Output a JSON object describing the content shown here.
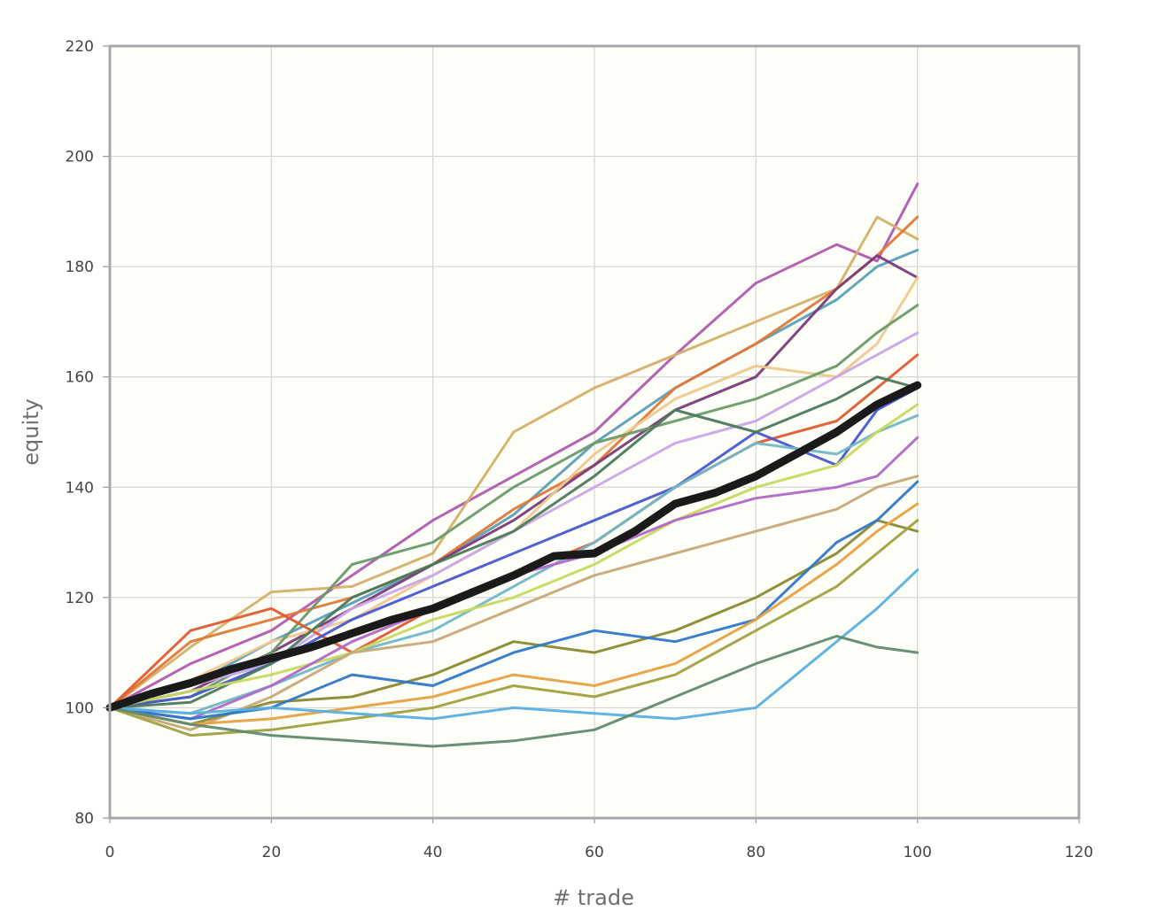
{
  "chart_data": {
    "type": "line",
    "title": "",
    "xlabel": "# trade",
    "ylabel": "equity",
    "xlim": [
      0,
      120
    ],
    "ylim": [
      80,
      220
    ],
    "x_ticks": [
      "0",
      "20",
      "40",
      "60",
      "80",
      "100",
      "120"
    ],
    "y_ticks": [
      "80",
      "100",
      "120",
      "140",
      "160",
      "180",
      "200",
      "220"
    ],
    "grid": true,
    "legend": "none",
    "background_color": "#fefef8",
    "grid_color": "#d6d6d6",
    "series": [
      {
        "color": "#b05ab0",
        "x": [
          0,
          10,
          20,
          30,
          40,
          50,
          60,
          70,
          80,
          90,
          95,
          100
        ],
        "values": [
          100,
          108,
          114,
          124,
          134,
          142,
          150,
          164,
          177,
          184,
          181,
          195
        ]
      },
      {
        "color": "#d4b06a",
        "x": [
          0,
          10,
          20,
          30,
          40,
          50,
          60,
          70,
          80,
          90,
          95,
          100
        ],
        "values": [
          100,
          111,
          121,
          122,
          128,
          150,
          158,
          164,
          170,
          176,
          189,
          185
        ]
      },
      {
        "color": "#5a9fb8",
        "x": [
          0,
          10,
          20,
          30,
          40,
          50,
          60,
          70,
          80,
          90,
          95,
          100
        ],
        "values": [
          100,
          104,
          112,
          119,
          126,
          135,
          148,
          158,
          166,
          174,
          180,
          183
        ]
      },
      {
        "color": "#e07838",
        "x": [
          0,
          10,
          20,
          30,
          40,
          50,
          60,
          70,
          80,
          90,
          95,
          100
        ],
        "values": [
          100,
          112,
          116,
          120,
          126,
          136,
          144,
          158,
          166,
          176,
          182,
          189
        ]
      },
      {
        "color": "#7a3c7a",
        "x": [
          0,
          10,
          20,
          30,
          40,
          50,
          60,
          70,
          80,
          90,
          95,
          100
        ],
        "values": [
          100,
          103,
          110,
          118,
          126,
          134,
          144,
          154,
          160,
          176,
          182,
          178
        ]
      },
      {
        "color": "#f0c890",
        "x": [
          0,
          10,
          20,
          30,
          40,
          50,
          60,
          70,
          80,
          90,
          95,
          100
        ],
        "values": [
          100,
          105,
          112,
          116,
          124,
          132,
          146,
          156,
          162,
          160,
          166,
          178
        ]
      },
      {
        "color": "#6a9a6a",
        "x": [
          0,
          10,
          20,
          30,
          40,
          50,
          60,
          70,
          80,
          90,
          95,
          100
        ],
        "values": [
          100,
          102,
          110,
          126,
          130,
          140,
          148,
          152,
          156,
          162,
          168,
          173
        ]
      },
      {
        "color": "#c8a8e8",
        "x": [
          0,
          10,
          20,
          30,
          40,
          50,
          60,
          70,
          80,
          90,
          95,
          100
        ],
        "values": [
          100,
          104,
          108,
          118,
          124,
          132,
          140,
          148,
          152,
          160,
          164,
          168
        ]
      },
      {
        "color": "#e05a30",
        "x": [
          0,
          10,
          20,
          30,
          40,
          50,
          60,
          70,
          80,
          90,
          95,
          100
        ],
        "values": [
          100,
          114,
          118,
          110,
          118,
          124,
          130,
          140,
          148,
          152,
          158,
          164
        ]
      },
      {
        "color": "#4858d0",
        "x": [
          0,
          10,
          20,
          30,
          40,
          50,
          60,
          70,
          80,
          90,
          95,
          100
        ],
        "values": [
          100,
          102,
          108,
          116,
          122,
          128,
          134,
          140,
          150,
          144,
          154,
          158
        ]
      },
      {
        "color": "#4a7a5a",
        "x": [
          0,
          10,
          20,
          30,
          40,
          50,
          60,
          70,
          80,
          90,
          95,
          100
        ],
        "values": [
          100,
          101,
          108,
          120,
          126,
          132,
          142,
          154,
          150,
          156,
          160,
          158
        ]
      },
      {
        "color": "#70b8c8",
        "x": [
          0,
          10,
          20,
          30,
          40,
          50,
          60,
          70,
          80,
          90,
          95,
          100
        ],
        "values": [
          100,
          99,
          104,
          110,
          114,
          122,
          130,
          140,
          148,
          146,
          150,
          153
        ]
      },
      {
        "color": "#c8d860",
        "x": [
          0,
          10,
          20,
          30,
          40,
          50,
          60,
          70,
          80,
          90,
          95,
          100
        ],
        "values": [
          100,
          103,
          106,
          110,
          116,
          120,
          126,
          134,
          140,
          144,
          150,
          155
        ]
      },
      {
        "color": "#b068c8",
        "x": [
          0,
          10,
          20,
          30,
          40,
          50,
          60,
          70,
          80,
          90,
          95,
          100
        ],
        "values": [
          100,
          98,
          104,
          112,
          118,
          124,
          128,
          134,
          138,
          140,
          142,
          149
        ]
      },
      {
        "color": "#c8a878",
        "x": [
          0,
          10,
          20,
          30,
          40,
          50,
          60,
          70,
          80,
          90,
          95,
          100
        ],
        "values": [
          100,
          96,
          102,
          110,
          112,
          118,
          124,
          128,
          132,
          136,
          140,
          142
        ]
      },
      {
        "color": "#8a8a30",
        "x": [
          0,
          10,
          20,
          30,
          40,
          50,
          60,
          70,
          80,
          90,
          95,
          100
        ],
        "values": [
          100,
          97,
          101,
          102,
          106,
          112,
          110,
          114,
          120,
          128,
          134,
          132
        ]
      },
      {
        "color": "#2e78c8",
        "x": [
          0,
          10,
          20,
          30,
          40,
          50,
          60,
          70,
          80,
          90,
          95,
          100
        ],
        "values": [
          100,
          98,
          100,
          106,
          104,
          110,
          114,
          112,
          116,
          130,
          134,
          141
        ]
      },
      {
        "color": "#e8a040",
        "x": [
          0,
          10,
          20,
          30,
          40,
          50,
          60,
          70,
          80,
          90,
          95,
          100
        ],
        "values": [
          100,
          97,
          98,
          100,
          102,
          106,
          104,
          108,
          116,
          126,
          132,
          137
        ]
      },
      {
        "color": "#a0a040",
        "x": [
          0,
          10,
          20,
          30,
          40,
          50,
          60,
          70,
          80,
          90,
          95,
          100
        ],
        "values": [
          100,
          95,
          96,
          98,
          100,
          104,
          102,
          106,
          114,
          122,
          128,
          134
        ]
      },
      {
        "color": "#58b0e0",
        "x": [
          0,
          10,
          20,
          30,
          40,
          50,
          60,
          70,
          80,
          90,
          95,
          100
        ],
        "values": [
          100,
          99,
          100,
          99,
          98,
          100,
          99,
          98,
          100,
          112,
          118,
          125
        ]
      },
      {
        "color": "#608a70",
        "x": [
          0,
          10,
          20,
          30,
          40,
          50,
          60,
          70,
          80,
          90,
          95,
          100
        ],
        "values": [
          100,
          97,
          95,
          94,
          93,
          94,
          96,
          102,
          108,
          113,
          111,
          110
        ]
      }
    ],
    "mean_series": {
      "color": "#1a1a1a",
      "x": [
        0,
        5,
        10,
        15,
        20,
        25,
        30,
        35,
        40,
        45,
        50,
        55,
        60,
        65,
        70,
        75,
        80,
        85,
        90,
        95,
        100
      ],
      "values": [
        100,
        102.5,
        104.5,
        107,
        109,
        111,
        113.5,
        116,
        118,
        121,
        124,
        127.5,
        128,
        132,
        137,
        139,
        142,
        146,
        150,
        155,
        158.5
      ]
    }
  }
}
